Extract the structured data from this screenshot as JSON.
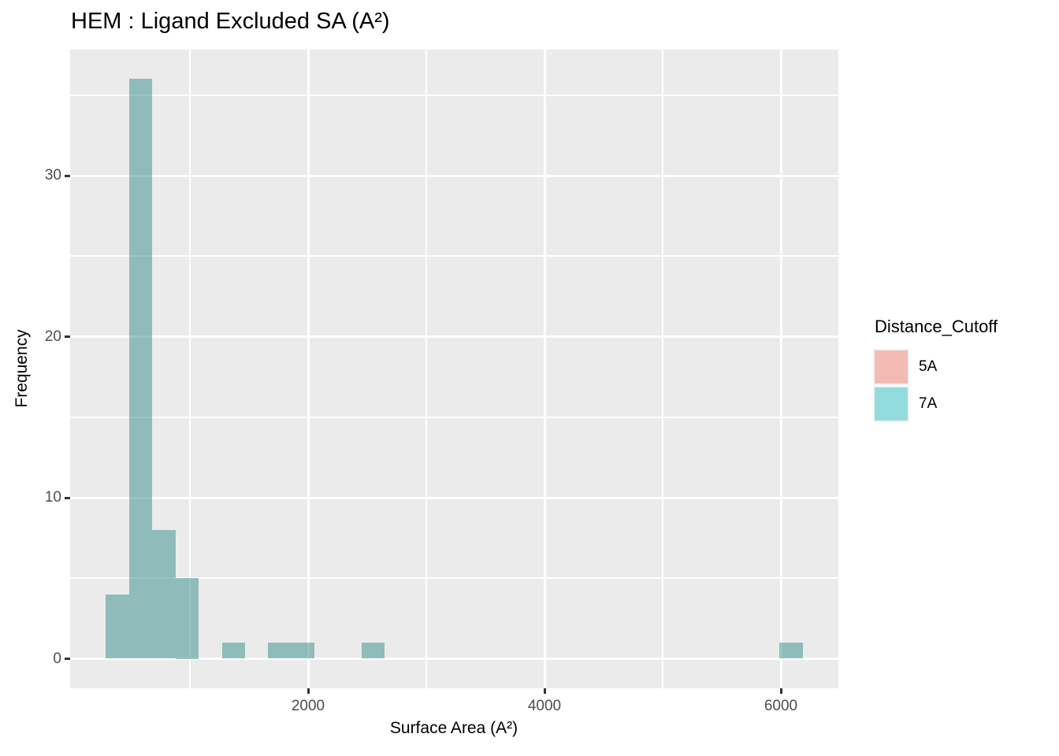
{
  "title": "HEM : Ligand Excluded SA (A²)",
  "x_axis": {
    "label": "Surface Area (A²)",
    "ticks": [
      {
        "value": 2000,
        "label": "2000"
      },
      {
        "value": 4000,
        "label": "4000"
      },
      {
        "value": 6000,
        "label": "6000"
      }
    ],
    "minor_gridlines": [
      1000,
      3000,
      5000
    ]
  },
  "y_axis": {
    "label": "Frequency",
    "ticks": [
      {
        "value": 0,
        "label": "0"
      },
      {
        "value": 10,
        "label": "10"
      },
      {
        "value": 20,
        "label": "20"
      },
      {
        "value": 30,
        "label": "30"
      }
    ],
    "minor_gridlines": [
      5,
      15,
      25,
      35
    ]
  },
  "legend": {
    "title": "Distance_Cutoff",
    "items": [
      {
        "label": "5A",
        "color": "#F4BAB4"
      },
      {
        "label": "7A",
        "color": "#92DCDE"
      }
    ]
  },
  "colors": {
    "background": "#FFFFFF",
    "panel_background": "#EBEBEB",
    "gridline": "#FFFFFF",
    "bar_fill": "rgba(68,149,146,0.55)",
    "tick_label": "#4D4D4D",
    "tick_mark": "#333333",
    "text": "#000000"
  },
  "chart_data": {
    "type": "bar",
    "subtype": "histogram",
    "title": "HEM : Ligand Excluded SA (A²)",
    "xlabel": "Surface Area (A²)",
    "ylabel": "Frequency",
    "xlim": [
      -13,
      6487
    ],
    "ylim": [
      -1.8,
      37.8
    ],
    "bin_width": 196.6,
    "total_count": 58,
    "grid": true,
    "legend_position": "right",
    "visible_series": "7A",
    "bins": [
      {
        "x0": 287,
        "x1": 484,
        "count": 4
      },
      {
        "x0": 484,
        "x1": 680,
        "count": 36
      },
      {
        "x0": 680,
        "x1": 877,
        "count": 8
      },
      {
        "x0": 877,
        "x1": 1073,
        "count": 5
      },
      {
        "x0": 1270,
        "x1": 1467,
        "count": 1
      },
      {
        "x0": 1663,
        "x1": 1860,
        "count": 1
      },
      {
        "x0": 1860,
        "x1": 2056,
        "count": 1
      },
      {
        "x0": 2450,
        "x1": 2646,
        "count": 1
      },
      {
        "x0": 5988,
        "x1": 6185,
        "count": 1
      }
    ]
  }
}
